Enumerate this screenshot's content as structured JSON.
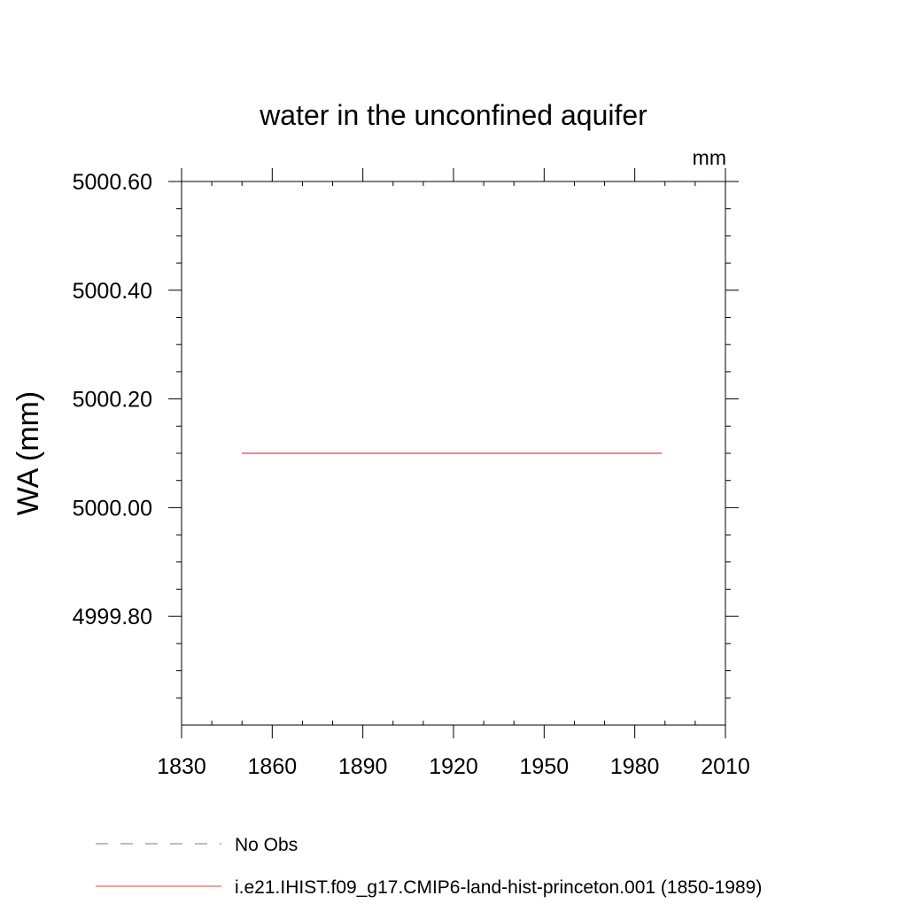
{
  "chart_data": {
    "type": "line",
    "title": "water in the unconfined aquifer",
    "units_label": "mm",
    "ylabel": "WA  (mm)",
    "xlabel": "",
    "xlim": [
      1830,
      2010
    ],
    "ylim": [
      4999.6,
      5000.6
    ],
    "x_ticks": [
      1830,
      1860,
      1890,
      1920,
      1950,
      1980,
      2010
    ],
    "x_tick_labels": [
      "1830",
      "1860",
      "1890",
      "1920",
      "1950",
      "1980",
      "2010"
    ],
    "y_ticks": [
      4999.8,
      5000.0,
      5000.2,
      5000.4,
      5000.6
    ],
    "y_tick_labels": [
      "4999.80",
      "5000.00",
      "5000.20",
      "5000.40",
      "5000.60"
    ],
    "grid": false,
    "legend_position": "bottom",
    "series": [
      {
        "name": "No Obs",
        "color": "#7b6fb0",
        "style": "dashed",
        "x": [],
        "y": []
      },
      {
        "name": "i.e21.IHIST.f09_g17.CMIP6-land-hist-princeton.001 (1850-1989)",
        "color": "#e8403a",
        "style": "solid",
        "x": [
          1850,
          1989
        ],
        "y": [
          5000.1,
          5000.1
        ]
      }
    ]
  }
}
